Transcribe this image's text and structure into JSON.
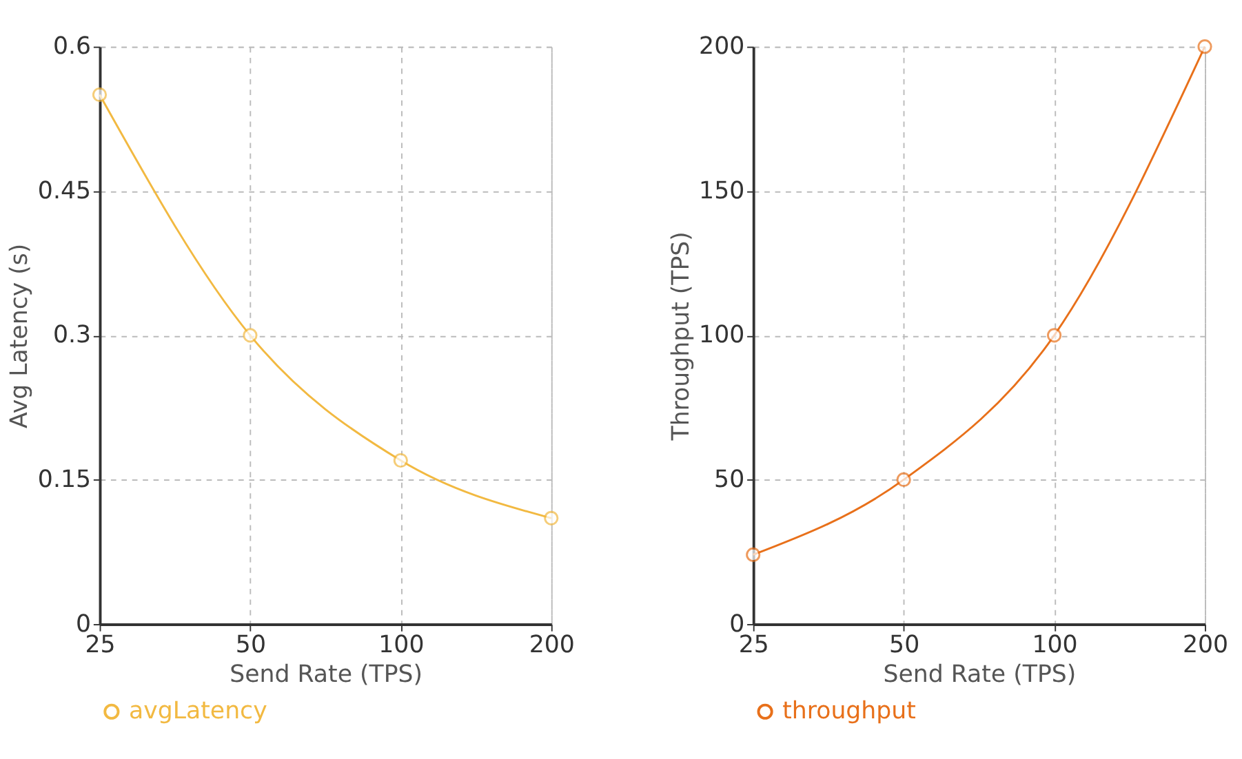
{
  "chart_data": [
    {
      "type": "line",
      "categories": [
        "25",
        "50",
        "100",
        "200"
      ],
      "xlabel": "Send Rate (TPS)",
      "ylabel": "Avg Latency (s)",
      "ylim": [
        0,
        0.6
      ],
      "yticks": [
        0,
        0.15,
        0.3,
        0.45,
        0.6
      ],
      "grid": true,
      "legend": "bottom",
      "marker": "circle",
      "series": [
        {
          "name": "avgLatency",
          "color": "#f2b941",
          "values": [
            0.55,
            0.3,
            0.17,
            0.11
          ]
        }
      ]
    },
    {
      "type": "line",
      "categories": [
        "25",
        "50",
        "100",
        "200"
      ],
      "xlabel": "Send Rate (TPS)",
      "ylabel": "Throughput (TPS)",
      "ylim": [
        0,
        200
      ],
      "yticks": [
        0,
        50,
        100,
        150,
        200
      ],
      "grid": true,
      "legend": "bottom",
      "marker": "circle",
      "series": [
        {
          "name": "throughput",
          "color": "#e8701a",
          "values": [
            24,
            50,
            100,
            200
          ]
        }
      ]
    }
  ]
}
